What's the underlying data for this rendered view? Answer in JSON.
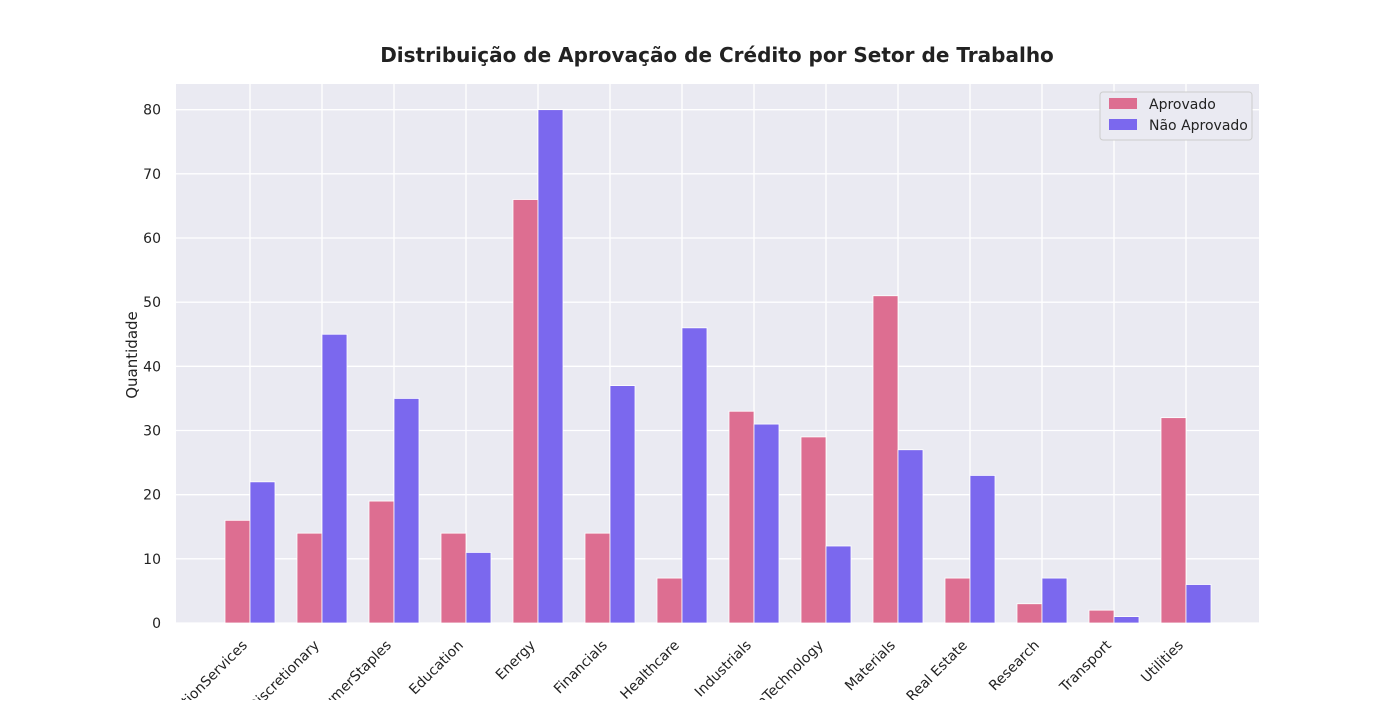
{
  "chart_data": {
    "type": "bar",
    "title": "Distribuição de Aprovação de Crédito por Setor de Trabalho",
    "xlabel": "",
    "ylabel": "Quantidade",
    "categories": [
      "tionServices",
      "Discretionary",
      "umerStaples",
      "Education",
      "Energy",
      "Financials",
      "Healthcare",
      "Industrials",
      "nTechnology",
      "Materials",
      "Real Estate",
      "Research",
      "Transport",
      "Utilities"
    ],
    "series": [
      {
        "name": "Aprovado",
        "color": "#dd6e91",
        "values": [
          16,
          14,
          19,
          14,
          66,
          14,
          7,
          33,
          29,
          51,
          7,
          3,
          2,
          32
        ]
      },
      {
        "name": "Não Aprovado",
        "color": "#7b68ee",
        "values": [
          22,
          45,
          35,
          11,
          80,
          37,
          46,
          31,
          12,
          27,
          23,
          7,
          1,
          6
        ]
      }
    ],
    "ylim": [
      0,
      84
    ],
    "yticks": [
      0,
      10,
      20,
      30,
      40,
      50,
      60,
      70,
      80
    ],
    "grid": true,
    "legend_position": "top-right",
    "background": "#eaeaf2"
  }
}
